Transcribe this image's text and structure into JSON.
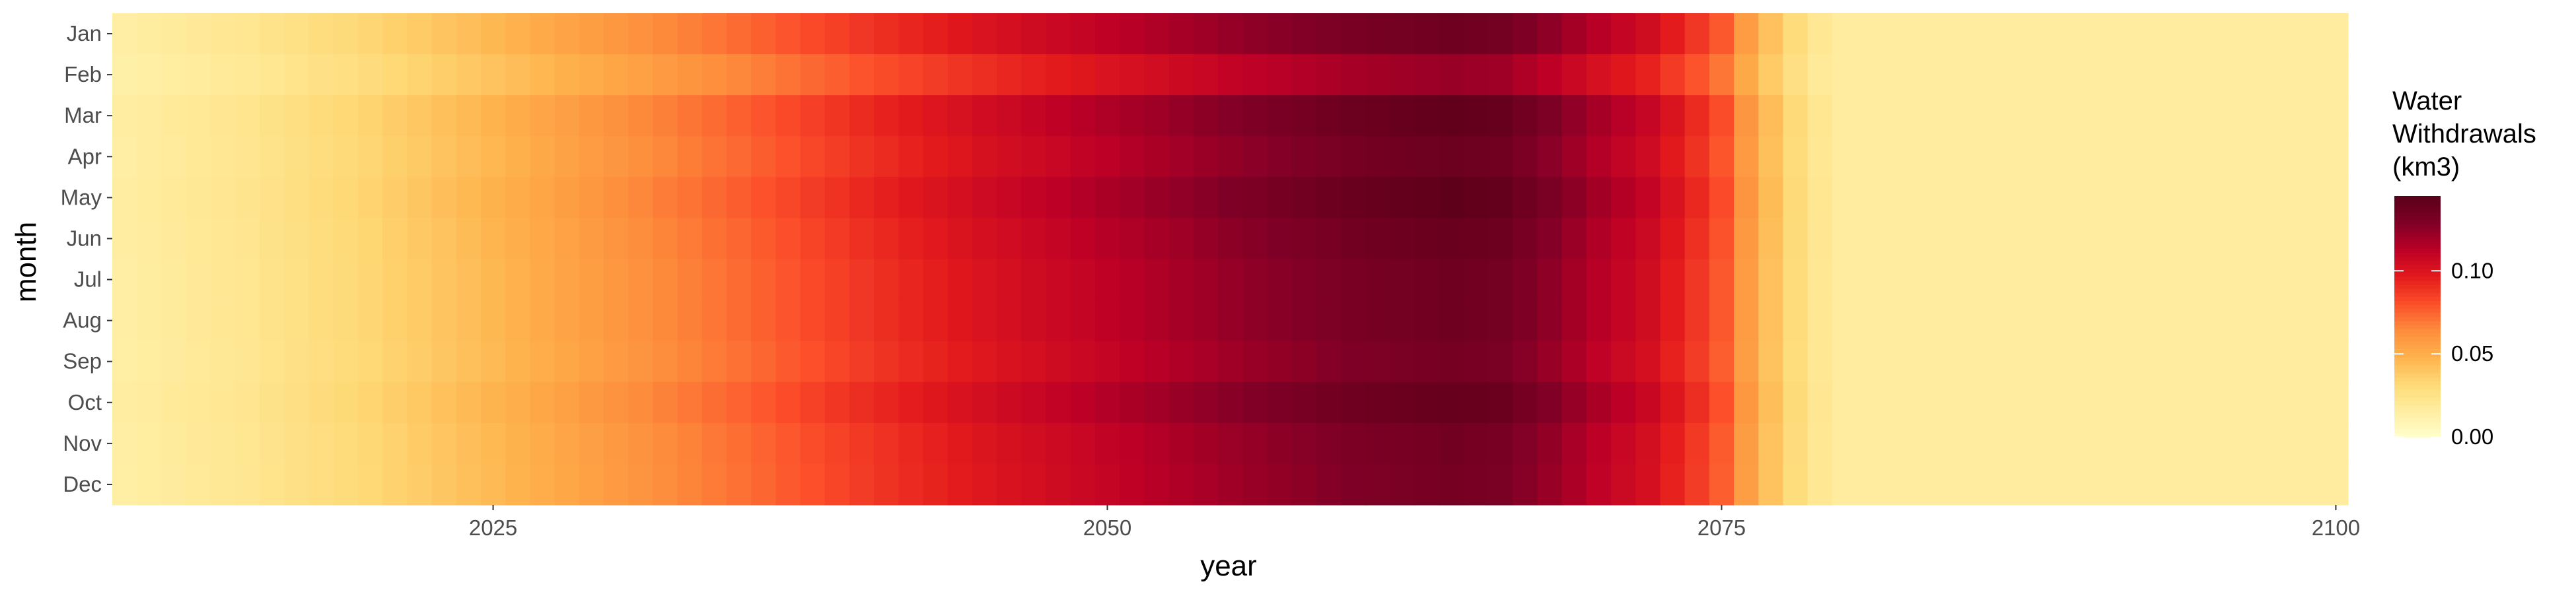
{
  "chart_data": {
    "type": "heatmap",
    "xlabel": "year",
    "ylabel": "month",
    "x_ticks": [
      2025,
      2050,
      2075,
      2100
    ],
    "xlim": [
      2009.5,
      2100.5
    ],
    "months": [
      "Jan",
      "Feb",
      "Mar",
      "Apr",
      "May",
      "Jun",
      "Jul",
      "Aug",
      "Sep",
      "Oct",
      "Nov",
      "Dec"
    ],
    "years_start": 2010,
    "years_end": 2100,
    "legend": {
      "title_lines": [
        "Water",
        "Withdrawals",
        "(km3)"
      ],
      "ticks": [
        0.0,
        0.05,
        0.1
      ],
      "tick_labels": [
        "0.00",
        "0.05",
        "0.10"
      ],
      "range": [
        0.0,
        0.145
      ],
      "placement": "right"
    },
    "color_scale": [
      "#ffffcc",
      "#ffeda0",
      "#fed976",
      "#feb24c",
      "#fd8d3c",
      "#fc4e2a",
      "#e31a1c",
      "#bd0026",
      "#800026",
      "#5a0018"
    ],
    "year_profile": [
      [
        2010,
        0.015
      ],
      [
        2015,
        0.022
      ],
      [
        2020,
        0.033
      ],
      [
        2025,
        0.046
      ],
      [
        2030,
        0.06
      ],
      [
        2035,
        0.073
      ],
      [
        2040,
        0.088
      ],
      [
        2045,
        0.101
      ],
      [
        2050,
        0.112
      ],
      [
        2055,
        0.123
      ],
      [
        2060,
        0.132
      ],
      [
        2064,
        0.136
      ],
      [
        2066,
        0.134
      ],
      [
        2068,
        0.125
      ],
      [
        2070,
        0.114
      ],
      [
        2072,
        0.105
      ],
      [
        2074,
        0.088
      ],
      [
        2075,
        0.078
      ],
      [
        2076,
        0.058
      ],
      [
        2077,
        0.042
      ],
      [
        2078,
        0.03
      ],
      [
        2079,
        0.021
      ],
      [
        2080,
        0.017
      ],
      [
        2100,
        0.017
      ]
    ],
    "month_factor": [
      1.0,
      0.9,
      1.04,
      1.01,
      1.05,
      1.02,
      1.0,
      1.0,
      0.98,
      1.03,
      0.99,
      0.98
    ]
  }
}
